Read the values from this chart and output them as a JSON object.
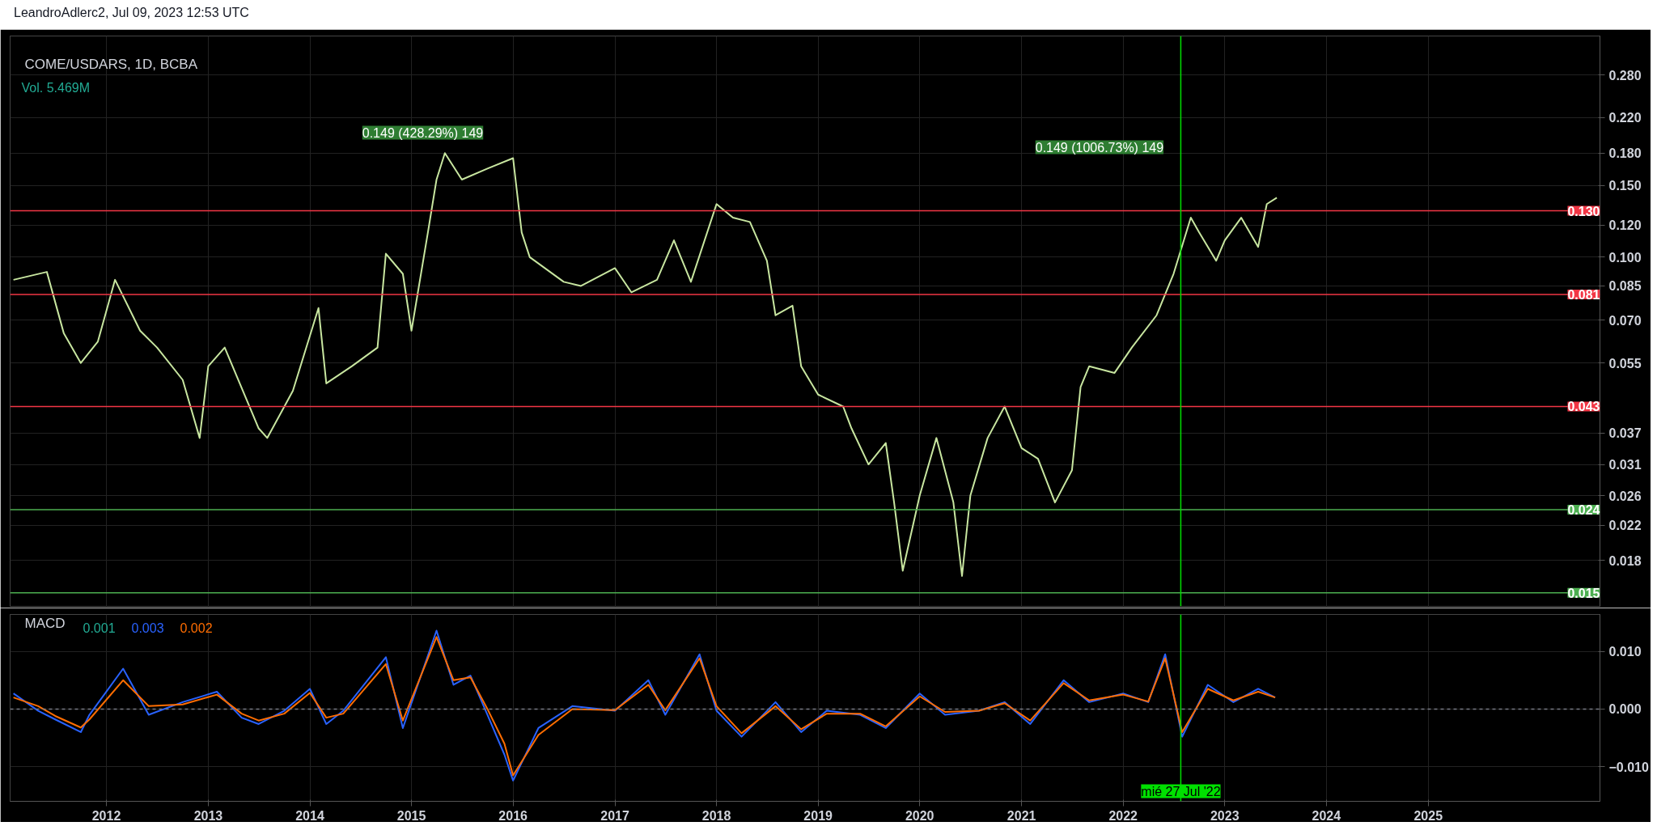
{
  "chart_data": [
    {
      "type": "line",
      "title": "COME/USDARS, 1D, BCBA",
      "subtitle": "Vol. 5.469M",
      "annotations": [
        "LeandroAdlerc2, Jul 09, 2023 12:53 UTC",
        "0.149 (428.29%) 149",
        "0.149 (1006.73%) 149"
      ],
      "x": [
        "2011-02",
        "2011-06",
        "2011-08",
        "2011-10",
        "2011-12",
        "2012-02",
        "2012-05",
        "2012-07",
        "2012-10",
        "2012-12",
        "2013-01",
        "2013-03",
        "2013-07",
        "2013-08",
        "2013-11",
        "2014-02",
        "2014-03",
        "2014-06",
        "2014-09",
        "2014-10",
        "2014-12",
        "2015-01",
        "2015-03",
        "2015-04",
        "2015-05",
        "2015-07",
        "2015-10",
        "2016-01",
        "2016-02",
        "2016-03",
        "2016-07",
        "2016-09",
        "2017-01",
        "2017-03",
        "2017-06",
        "2017-08",
        "2017-10",
        "2018-01",
        "2018-03",
        "2018-05",
        "2018-07",
        "2018-08",
        "2018-10",
        "2018-11",
        "2019-01",
        "2019-04",
        "2019-05",
        "2019-07",
        "2019-09",
        "2019-10",
        "2019-11",
        "2020-01",
        "2020-03",
        "2020-05",
        "2020-06",
        "2020-07",
        "2020-09",
        "2020-11",
        "2021-01",
        "2021-03",
        "2021-05",
        "2021-07",
        "2021-08",
        "2021-09",
        "2021-12",
        "2022-02",
        "2022-05",
        "2022-07",
        "2022-09",
        "2022-10",
        "2022-12",
        "2023-01",
        "2023-03",
        "2023-05",
        "2023-06",
        "2023-07-07"
      ],
      "series": [
        {
          "color": "#c8e6a0",
          "values": [
            0.088,
            0.092,
            0.065,
            0.055,
            0.062,
            0.088,
            0.066,
            0.06,
            0.05,
            0.036,
            0.054,
            0.06,
            0.038,
            0.036,
            0.047,
            0.075,
            0.049,
            0.054,
            0.06,
            0.102,
            0.091,
            0.066,
            0.115,
            0.155,
            0.18,
            0.155,
            0.165,
            0.175,
            0.115,
            0.1,
            0.087,
            0.085,
            0.094,
            0.082,
            0.088,
            0.11,
            0.087,
            0.135,
            0.125,
            0.122,
            0.098,
            0.072,
            0.076,
            0.054,
            0.046,
            0.043,
            0.038,
            0.031,
            0.035,
            0.025,
            0.017,
            0.026,
            0.036,
            0.025,
            0.0165,
            0.026,
            0.036,
            0.043,
            0.034,
            0.032,
            0.025,
            0.03,
            0.048,
            0.054,
            0.052,
            0.06,
            0.072,
            0.091,
            0.125,
            0.115,
            0.098,
            0.11,
            0.125,
            0.106,
            0.135,
            0.14
          ]
        }
      ],
      "log": true,
      "grid": true,
      "tick_labels": "y",
      "xlim": [
        "2011-01-20",
        "2026-09-10"
      ],
      "xticks": [
        "2012",
        "2013",
        "2014",
        "2015",
        "2016",
        "2017",
        "2018",
        "2019",
        "2020",
        "2021",
        "2022",
        "2023",
        "2024",
        "2025"
      ],
      "ylim": [
        0.0139,
        0.349
      ],
      "yticks": [
        {
          "value": 0.28,
          "label": "0.280"
        },
        {
          "value": 0.22,
          "label": "0.220"
        },
        {
          "value": 0.18,
          "label": "0.180"
        },
        {
          "value": 0.15,
          "label": "0.150"
        },
        {
          "value": 0.12,
          "label": "0.120"
        },
        {
          "value": 0.1,
          "label": "0.100"
        },
        {
          "value": 0.085,
          "label": "0.085"
        },
        {
          "value": 0.07,
          "label": "0.070"
        },
        {
          "value": 0.055,
          "label": "0.055"
        },
        {
          "value": 0.037,
          "label": "0.037"
        },
        {
          "value": 0.031,
          "label": "0.031"
        },
        {
          "value": 0.026,
          "label": "0.026"
        },
        {
          "value": 0.022,
          "label": "0.022"
        },
        {
          "value": 0.018,
          "label": "0.018"
        }
      ],
      "ref_lines": [
        {
          "axis": "y",
          "value": 0.13,
          "label": "0.130",
          "color": "#f23645"
        },
        {
          "axis": "y",
          "value": 0.081,
          "label": "0.081",
          "color": "#f23645"
        },
        {
          "axis": "y",
          "value": 0.043,
          "label": "0.043",
          "color": "#f23645"
        },
        {
          "axis": "y",
          "value": 0.024,
          "label": "0.024",
          "color": "#4caf50"
        },
        {
          "axis": "y",
          "value": 0.015,
          "label": "0.015",
          "color": "#4caf50"
        },
        {
          "axis": "x",
          "value": "2022-07-27",
          "label": null,
          "color": "#00e000"
        }
      ]
    },
    {
      "type": "line",
      "title": "MACD",
      "annotations": [
        "0.001",
        "0.003",
        "0.002"
      ],
      "x": [
        "2011-02",
        "2011-05",
        "2011-07",
        "2011-10",
        "2011-11",
        "2012-03",
        "2012-06",
        "2012-10",
        "2013-02",
        "2013-05",
        "2013-07",
        "2013-10",
        "2014-01",
        "2014-03",
        "2014-05",
        "2014-10",
        "2014-12",
        "2015-04",
        "2015-06",
        "2015-08",
        "2015-10",
        "2015-12",
        "2016-01",
        "2016-04",
        "2016-08",
        "2017-01",
        "2017-05",
        "2017-07",
        "2017-11",
        "2018-01",
        "2018-04",
        "2018-08",
        "2018-11",
        "2019-02",
        "2019-06",
        "2019-09",
        "2020-01",
        "2020-04",
        "2020-08",
        "2020-11",
        "2021-02",
        "2021-06",
        "2021-09",
        "2022-01",
        "2022-04",
        "2022-06",
        "2022-08",
        "2022-11",
        "2023-02",
        "2023-05",
        "2023-07"
      ],
      "series": [
        {
          "color": "#2962ff",
          "values": [
            0.0027,
            -0.0003,
            -0.0018,
            -0.004,
            -0.001,
            0.007,
            -0.001,
            0.0012,
            0.003,
            -0.0015,
            -0.0026,
            -0.0003,
            0.0035,
            -0.0026,
            -0.0003,
            0.009,
            -0.0033,
            0.0136,
            0.0042,
            0.0058,
            -0.001,
            -0.0079,
            -0.0124,
            -0.0033,
            0.0005,
            -0.0003,
            0.005,
            -0.001,
            0.0095,
            -0.0003,
            -0.0048,
            0.0012,
            -0.004,
            -0.0003,
            -0.001,
            -0.0033,
            0.0027,
            -0.001,
            -0.0003,
            0.0012,
            -0.0026,
            0.005,
            0.0012,
            0.0027,
            0.0012,
            0.0095,
            -0.0048,
            0.0042,
            0.0012,
            0.0035,
            0.002
          ]
        },
        {
          "color": "#ff6d00",
          "values": [
            0.002,
            0.0005,
            -0.0012,
            -0.0032,
            -0.0018,
            0.005,
            0.0005,
            0.0008,
            0.0025,
            -0.0008,
            -0.002,
            -0.0008,
            0.0028,
            -0.0015,
            -0.0008,
            0.0078,
            -0.002,
            0.0125,
            0.005,
            0.0055,
            0.0,
            -0.006,
            -0.0115,
            -0.0045,
            0.0,
            -0.0002,
            0.0042,
            -0.0002,
            0.0088,
            0.0005,
            -0.0042,
            0.0005,
            -0.0035,
            -0.0008,
            -0.0008,
            -0.003,
            0.0022,
            -0.0005,
            -0.0003,
            0.001,
            -0.002,
            0.0045,
            0.0015,
            0.0025,
            0.0013,
            0.0088,
            -0.004,
            0.0035,
            0.0015,
            0.003,
            0.002
          ]
        }
      ],
      "grid": true,
      "xlim": [
        "2011-01-20",
        "2026-09-10"
      ],
      "xticks": [
        "2012",
        "2013",
        "2014",
        "2015",
        "2016",
        "2017",
        "2018",
        "2019",
        "2020",
        "2021",
        "2022",
        "2023",
        "2024",
        "2025"
      ],
      "ylim": [
        -0.016,
        0.0164
      ],
      "yticks": [
        {
          "value": 0.01,
          "label": "0.010"
        },
        {
          "value": 0.0,
          "label": "0.000"
        },
        {
          "value": -0.01,
          "label": "−0.010"
        }
      ],
      "ref_lines": [
        {
          "axis": "y",
          "value": 0.0,
          "label": null,
          "color": "#787b86",
          "line_style": "dashed"
        },
        {
          "axis": "x",
          "value": "2022-07-27",
          "label": "mié 27 Jul '22",
          "color": "#00e000"
        }
      ]
    }
  ]
}
